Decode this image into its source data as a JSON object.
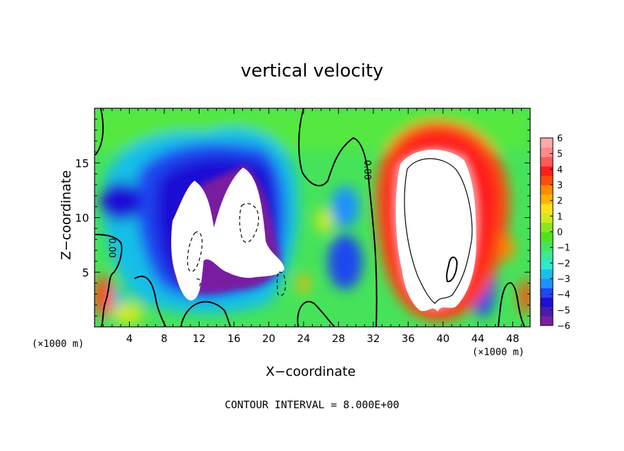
{
  "chart_data": {
    "type": "heatmap",
    "title": "vertical velocity",
    "xlabel": "X−coordinate",
    "ylabel": "Z−coordinate",
    "x_unit": "(×1000 m)",
    "xlim": [
      0,
      50
    ],
    "ylim": [
      0,
      20
    ],
    "x_ticks": [
      4,
      8,
      12,
      16,
      20,
      24,
      28,
      32,
      36,
      40,
      44,
      48
    ],
    "y_ticks": [
      5,
      10,
      15
    ],
    "colorbar": {
      "labels": [
        "6",
        "5",
        "4",
        "3",
        "2",
        "1",
        "0",
        "−1",
        "−2",
        "−3",
        "−4",
        "−5",
        "−6"
      ],
      "range": [
        -6,
        6
      ],
      "colors": [
        "#7a1fa2",
        "#4b1bb0",
        "#1d0ed6",
        "#1f46f0",
        "#1e90ff",
        "#19bfe6",
        "#2ee8d0",
        "#3ce89a",
        "#46e35a",
        "#4fe21c",
        "#8fe51c",
        "#d0ea1c",
        "#ffe01a",
        "#ffb300",
        "#ff8a00",
        "#ff4a10",
        "#ff1e1e",
        "#ff5a5a",
        "#ff8a8a",
        "#ffaaaa"
      ]
    },
    "contour_interval": "CONTOUR INTERVAL = 8.000E+00",
    "contour_labels": [
      "0.00",
      "0.00"
    ],
    "features": [
      {
        "kind": "updraft",
        "sign": "positive",
        "x_center": 39,
        "z_center": 9,
        "x_halfwidth": 7,
        "z_halfwidth": 9,
        "peak": 14
      },
      {
        "kind": "downdraft",
        "sign": "negative",
        "x_center": 13,
        "z_center": 9,
        "x_halfwidth": 4,
        "z_halfwidth": 5,
        "peak": -13
      },
      {
        "kind": "downdraft",
        "sign": "negative",
        "x_center": 18,
        "z_center": 10,
        "x_halfwidth": 3,
        "z_halfwidth": 5,
        "peak": -13
      },
      {
        "kind": "downdraft",
        "sign": "negative",
        "x_center": 3,
        "z_center": 11,
        "x_halfwidth": 3,
        "z_halfwidth": 3,
        "peak": -4
      }
    ]
  }
}
